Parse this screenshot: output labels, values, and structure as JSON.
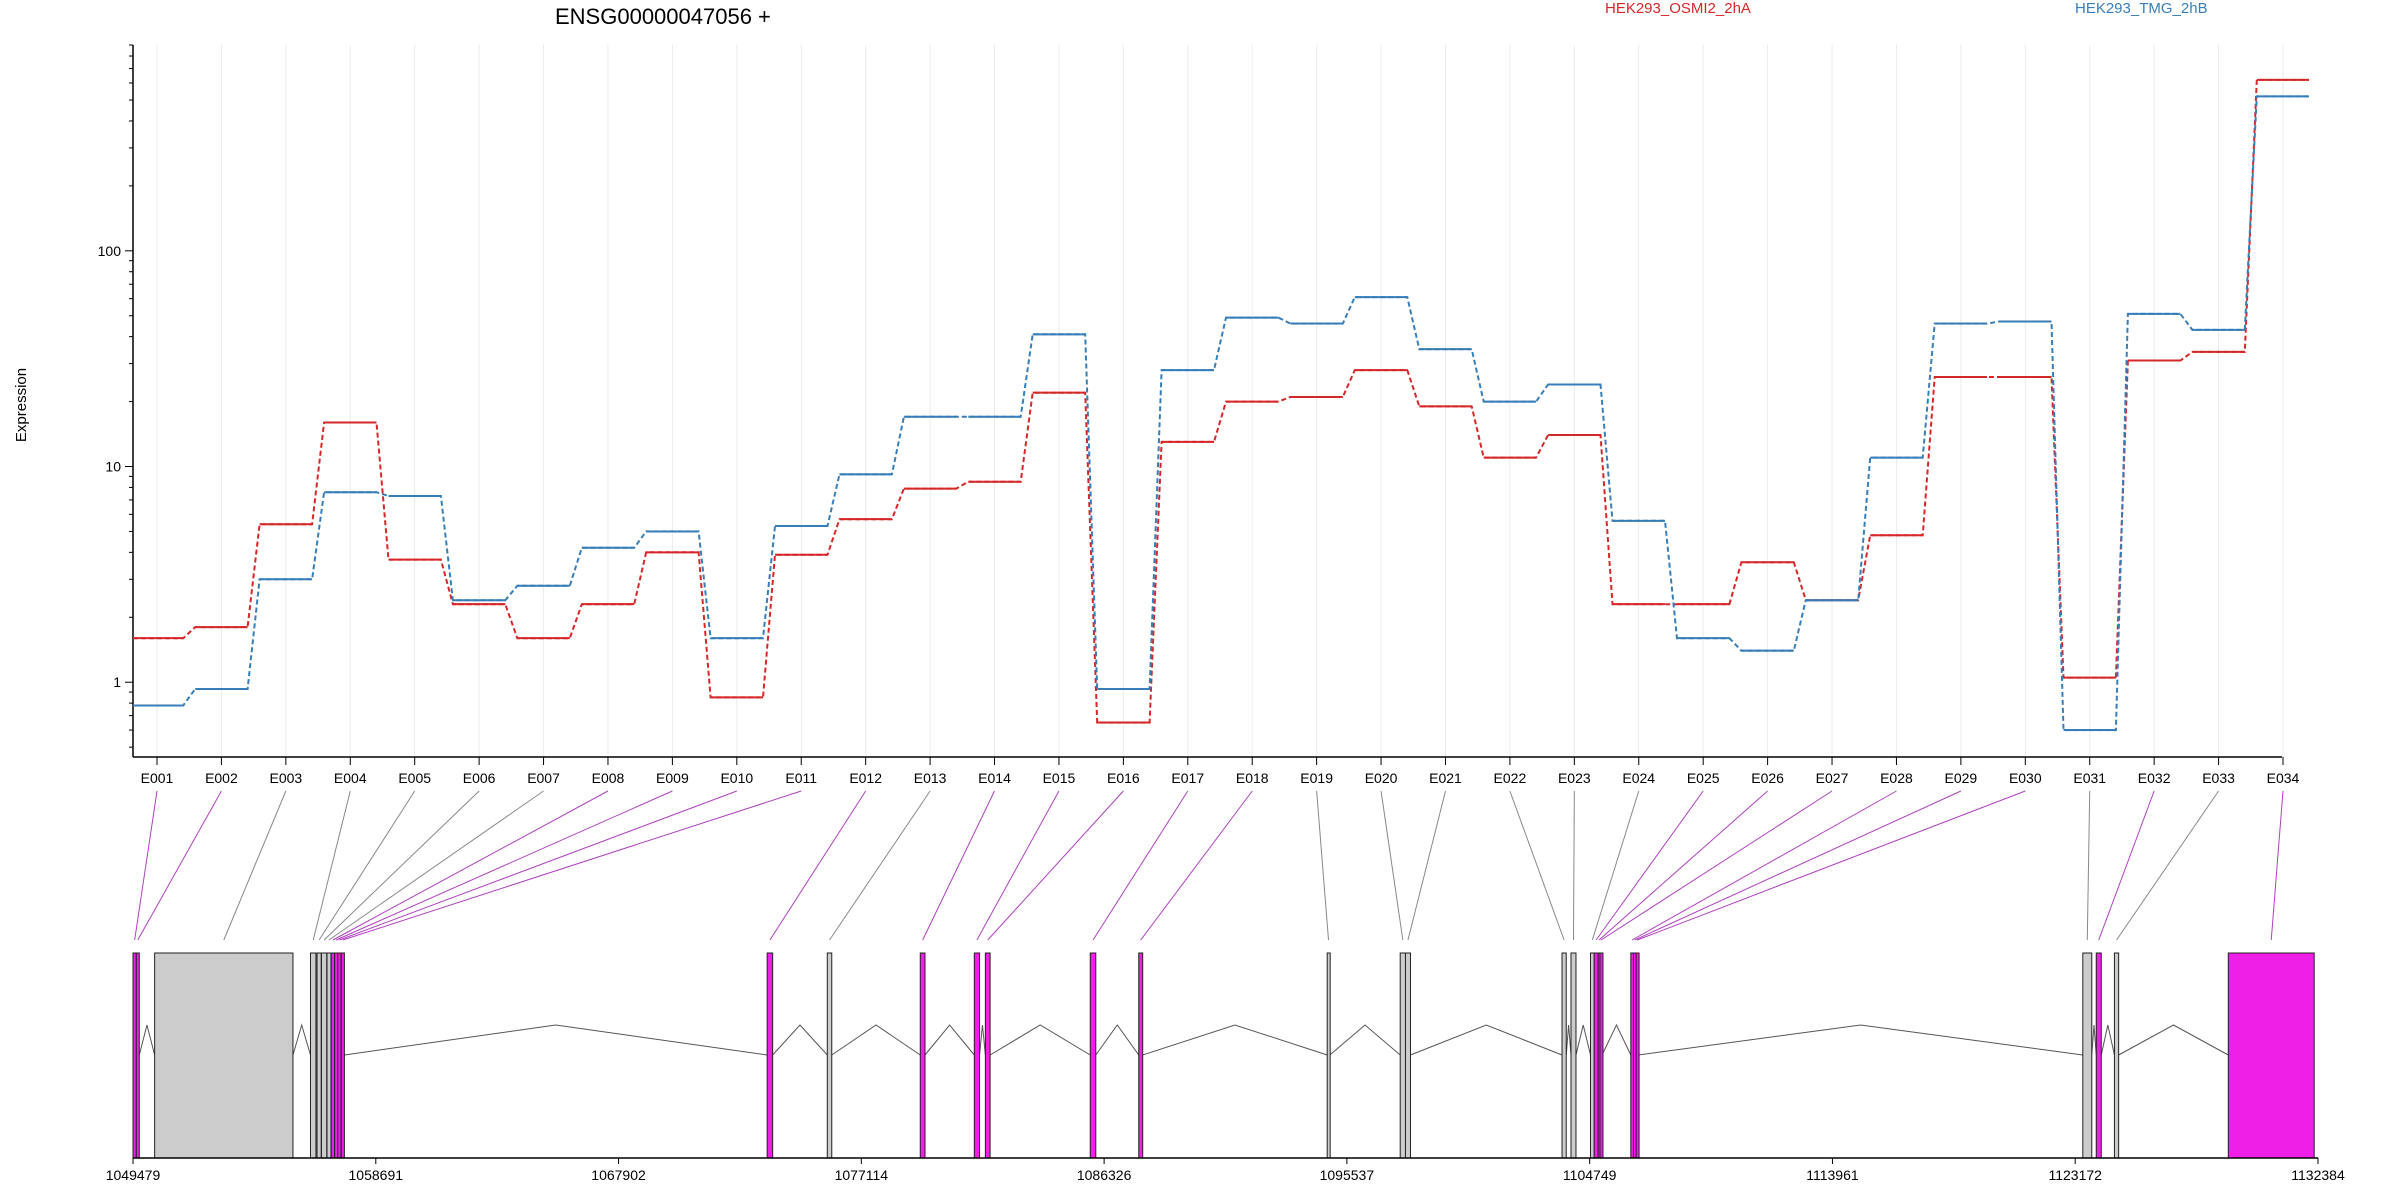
{
  "chart_data": {
    "type": "line",
    "title": "ENSG00000047056 +",
    "xlabel": "",
    "ylabel": "Expression",
    "y_scale": "log",
    "ylim": [
      0.45,
      900
    ],
    "y_ticks": [
      {
        "value": 1,
        "label": "1"
      },
      {
        "value": 10,
        "label": "10"
      },
      {
        "value": 100,
        "label": "100"
      }
    ],
    "grid": "vertical",
    "legend_position": "top",
    "categories": [
      "E001",
      "E002",
      "E003",
      "E004",
      "E005",
      "E006",
      "E007",
      "E008",
      "E009",
      "E010",
      "E011",
      "E012",
      "E013",
      "E014",
      "E015",
      "E016",
      "E017",
      "E018",
      "E019",
      "E020",
      "E021",
      "E022",
      "E023",
      "E024",
      "E025",
      "E026",
      "E027",
      "E028",
      "E029",
      "E030",
      "E031",
      "E032",
      "E033",
      "E034"
    ],
    "series": [
      {
        "name": "HEK293_OSMI2_2hA",
        "color": "#d62728",
        "values": [
          1.6,
          1.8,
          5.4,
          16,
          3.7,
          2.3,
          1.6,
          2.3,
          4,
          0.85,
          3.9,
          5.7,
          7.9,
          8.5,
          22,
          0.65,
          13,
          20,
          21,
          28,
          19,
          11,
          14,
          2.3,
          2.3,
          3.6,
          2.4,
          4.8,
          26,
          26,
          1.05,
          31,
          34,
          620
        ]
      },
      {
        "name": "HEK293_TMG_2hB",
        "color": "#377eb8",
        "values": [
          0.78,
          0.93,
          3.0,
          7.6,
          7.3,
          2.4,
          2.8,
          4.2,
          5.0,
          1.6,
          5.3,
          9.2,
          17,
          17,
          41,
          0.93,
          28,
          49,
          46,
          61,
          35,
          20,
          24,
          5.6,
          1.6,
          1.4,
          2.4,
          11,
          46,
          47,
          0.6,
          51,
          43,
          520
        ]
      }
    ],
    "gene_model": {
      "strand": "+",
      "coord_range": [
        1049479,
        1132384
      ],
      "coord_ticks": [
        1049479,
        1058691,
        1067902,
        1077114,
        1086326,
        1095537,
        1104749,
        1113961,
        1123172,
        1132384
      ],
      "feature_colors": {
        "exon": "#f01fe8",
        "other": "#cccccc"
      },
      "exons": [
        {
          "id": "E001",
          "start": 1049479,
          "end": 1049604,
          "kind": "exon"
        },
        {
          "id": "E002",
          "start": 1049604,
          "end": 1049717,
          "kind": "exon"
        },
        {
          "id": "E003",
          "start": 1050300,
          "end": 1055548,
          "kind": "other"
        },
        {
          "id": "E004",
          "start": 1056213,
          "end": 1056420,
          "kind": "other"
        },
        {
          "id": "E005",
          "start": 1056462,
          "end": 1056620,
          "kind": "other"
        },
        {
          "id": "E006",
          "start": 1056630,
          "end": 1056830,
          "kind": "other"
        },
        {
          "id": "E007",
          "start": 1056840,
          "end": 1056990,
          "kind": "other"
        },
        {
          "id": "E008",
          "start": 1057000,
          "end": 1057130,
          "kind": "exon"
        },
        {
          "id": "E009",
          "start": 1057130,
          "end": 1057250,
          "kind": "exon"
        },
        {
          "id": "E010",
          "start": 1057250,
          "end": 1057370,
          "kind": "exon"
        },
        {
          "id": "E011",
          "start": 1057380,
          "end": 1057500,
          "kind": "exon"
        },
        {
          "id": "E012",
          "start": 1073540,
          "end": 1073750,
          "kind": "exon"
        },
        {
          "id": "E013",
          "start": 1075822,
          "end": 1075992,
          "kind": "other"
        },
        {
          "id": "E014",
          "start": 1079350,
          "end": 1079530,
          "kind": "exon"
        },
        {
          "id": "E015",
          "start": 1081400,
          "end": 1081600,
          "kind": "exon"
        },
        {
          "id": "E016",
          "start": 1081820,
          "end": 1082000,
          "kind": "exon"
        },
        {
          "id": "E017",
          "start": 1085800,
          "end": 1086010,
          "kind": "exon"
        },
        {
          "id": "E018",
          "start": 1087640,
          "end": 1087790,
          "kind": "exon"
        },
        {
          "id": "E019",
          "start": 1094790,
          "end": 1094890,
          "kind": "other"
        },
        {
          "id": "E020",
          "start": 1097560,
          "end": 1097760,
          "kind": "other"
        },
        {
          "id": "E021",
          "start": 1097760,
          "end": 1097950,
          "kind": "other"
        },
        {
          "id": "E022",
          "start": 1103700,
          "end": 1103860,
          "kind": "other"
        },
        {
          "id": "E023",
          "start": 1104040,
          "end": 1104230,
          "kind": "other"
        },
        {
          "id": "E024",
          "start": 1104780,
          "end": 1104920,
          "kind": "other"
        },
        {
          "id": "E025",
          "start": 1104920,
          "end": 1105070,
          "kind": "exon"
        },
        {
          "id": "E026",
          "start": 1105070,
          "end": 1105140,
          "kind": "exon"
        },
        {
          "id": "E027",
          "start": 1105140,
          "end": 1105220,
          "kind": "exon"
        },
        {
          "id": "E028",
          "start": 1106310,
          "end": 1106410,
          "kind": "exon"
        },
        {
          "id": "E029",
          "start": 1106410,
          "end": 1106510,
          "kind": "exon"
        },
        {
          "id": "E030",
          "start": 1106510,
          "end": 1106600,
          "kind": "exon"
        },
        {
          "id": "E031",
          "start": 1123460,
          "end": 1123800,
          "kind": "other"
        },
        {
          "id": "E032",
          "start": 1123970,
          "end": 1124160,
          "kind": "exon"
        },
        {
          "id": "E033",
          "start": 1124660,
          "end": 1124820,
          "kind": "other"
        },
        {
          "id": "E034",
          "start": 1128980,
          "end": 1132240,
          "kind": "exon"
        }
      ]
    }
  }
}
